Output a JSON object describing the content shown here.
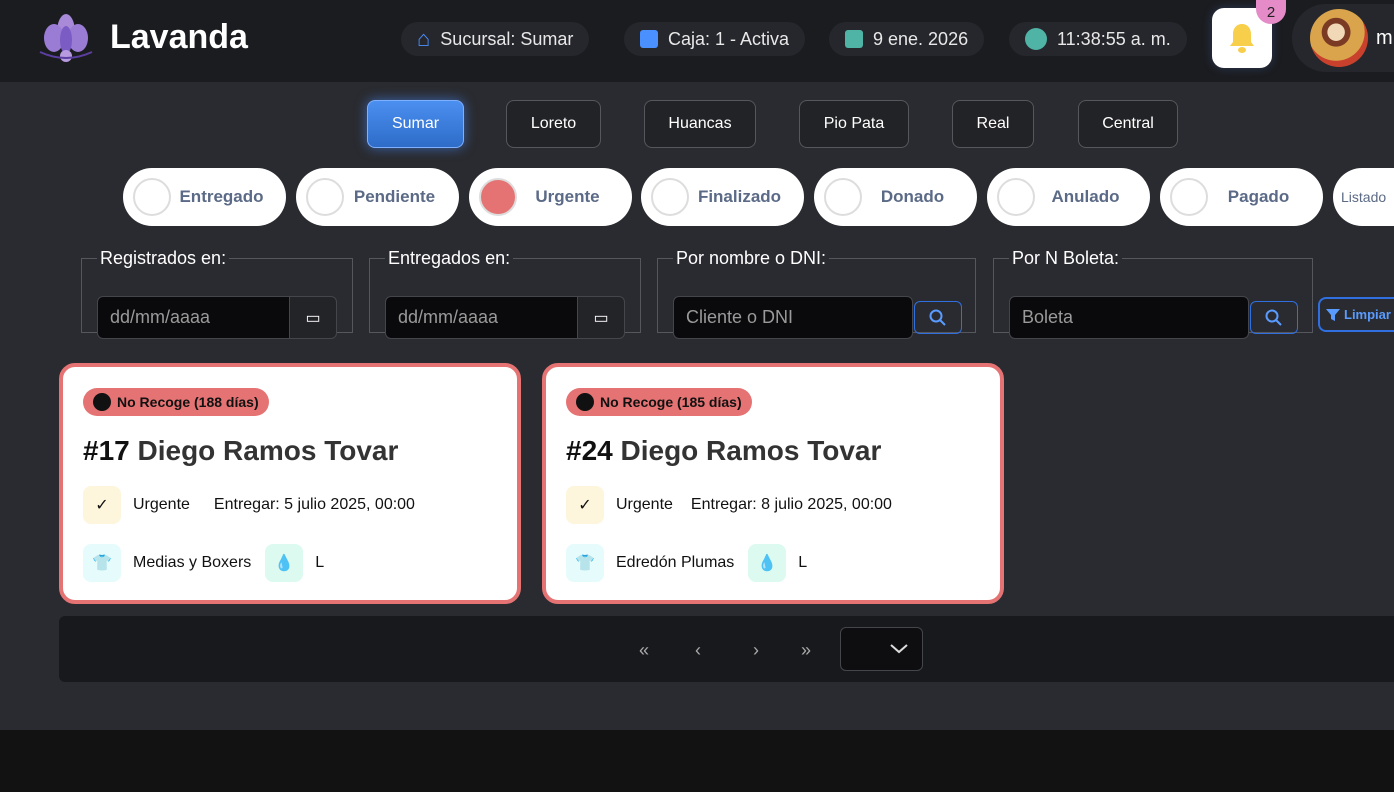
{
  "header": {
    "app_name": "Lavanda",
    "branch": "Sucursal: Sumar",
    "register": "Caja: 1 - Activa",
    "date": "9 ene. 2026",
    "time": "11:38:55 a. m.",
    "notifications": "2",
    "user_initial": "m"
  },
  "branches": [
    {
      "label": "Sumar",
      "active": true
    },
    {
      "label": "Loreto"
    },
    {
      "label": "Huancas"
    },
    {
      "label": "Pio Pata"
    },
    {
      "label": "Real"
    },
    {
      "label": "Central"
    }
  ],
  "statuses": [
    {
      "label": "Entregado"
    },
    {
      "label": "Pendiente"
    },
    {
      "label": "Urgente",
      "active": true
    },
    {
      "label": "Finalizado"
    },
    {
      "label": "Donado"
    },
    {
      "label": "Anulado"
    },
    {
      "label": "Pagado"
    },
    {
      "label": "Listado"
    }
  ],
  "filters": {
    "registered": {
      "label": "Registrados en:",
      "placeholder": "dd/mm/aaaa"
    },
    "delivered": {
      "label": "Entregados en:",
      "placeholder": "dd/mm/aaaa"
    },
    "name": {
      "label": "Por nombre o DNI:",
      "placeholder": "Cliente o DNI"
    },
    "ticket": {
      "label": "Por N Boleta:",
      "placeholder": "Boleta"
    },
    "clear_label": "Limpiar"
  },
  "orders": [
    {
      "tag": "No Recoge (188 días)",
      "number": "#17",
      "client": "Diego Ramos Tovar",
      "priority": "Urgente",
      "deliver": "Entregar: 5 julio 2025, 00:00",
      "item": "Medias y Boxers",
      "size": "L"
    },
    {
      "tag": "No Recoge (185 días)",
      "number": "#24",
      "client": "Diego Ramos Tovar",
      "priority": "Urgente",
      "deliver": "Entregar: 8 julio 2025, 00:00",
      "item": "Edredón Plumas",
      "size": "L"
    }
  ],
  "pagination": {
    "first": "«",
    "prev": "‹",
    "next": "›",
    "last": "»"
  },
  "colors": {
    "accent": "#3b7de0",
    "urgent": "#e57373",
    "header_bg": "#1b1c20",
    "main_bg": "#2a2b30"
  }
}
